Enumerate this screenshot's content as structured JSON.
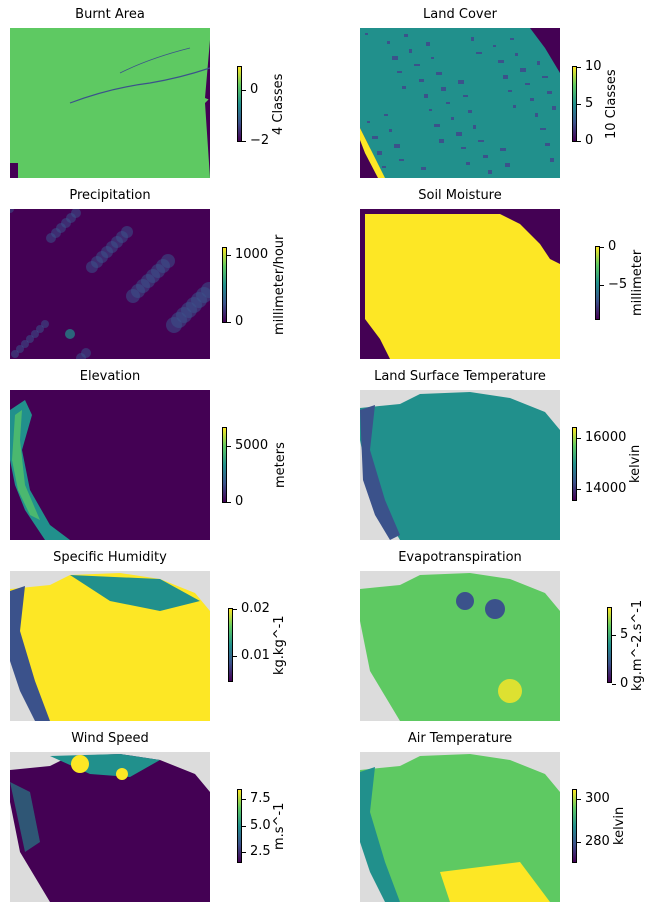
{
  "colors": {
    "viridis_dark": "#440154",
    "viridis_blue": "#3b528b",
    "viridis_teal": "#21908c",
    "viridis_green": "#5ec962",
    "viridis_yellow": "#fde725",
    "nodata_gray": "#dcdcdc"
  },
  "chart_data": [
    {
      "type": "heatmap",
      "title": "Burnt Area",
      "colorbar_label": "4 Classes",
      "colorbar_ticks": [
        "0",
        "−2"
      ],
      "colormap": "viridis"
    },
    {
      "type": "heatmap",
      "title": "Land Cover",
      "colorbar_label": "10 Classes",
      "colorbar_ticks": [
        "10",
        "5",
        "0"
      ],
      "colormap": "viridis"
    },
    {
      "type": "heatmap",
      "title": "Precipitation",
      "colorbar_label": "millimeter/hour",
      "colorbar_ticks": [
        "1000",
        "0"
      ],
      "colormap": "viridis"
    },
    {
      "type": "heatmap",
      "title": "Soil Moisture",
      "colorbar_label": "millimeter",
      "colorbar_ticks": [
        "0",
        "−5"
      ],
      "colormap": "viridis"
    },
    {
      "type": "heatmap",
      "title": "Elevation",
      "colorbar_label": "meters",
      "colorbar_ticks": [
        "5000",
        "0"
      ],
      "colormap": "viridis"
    },
    {
      "type": "heatmap",
      "title": "Land Surface Temperature",
      "colorbar_label": "kelvin",
      "colorbar_ticks": [
        "16000",
        "14000"
      ],
      "colormap": "viridis"
    },
    {
      "type": "heatmap",
      "title": "Specific Humidity",
      "colorbar_label": "kg.kg^-1",
      "colorbar_ticks": [
        "0.02",
        "0.01"
      ],
      "colormap": "viridis"
    },
    {
      "type": "heatmap",
      "title": "Evapotranspiration",
      "colorbar_label": "kg.m^-2.s^-1",
      "colorbar_ticks": [
        "5",
        "0"
      ],
      "colormap": "viridis"
    },
    {
      "type": "heatmap",
      "title": "Wind Speed",
      "colorbar_label": "m.s^-1",
      "colorbar_ticks": [
        "7.5",
        "5.0",
        "2.5"
      ],
      "colormap": "viridis"
    },
    {
      "type": "heatmap",
      "title": "Air Temperature",
      "colorbar_label": "kelvin",
      "colorbar_ticks": [
        "300",
        "280"
      ],
      "colormap": "viridis"
    }
  ]
}
